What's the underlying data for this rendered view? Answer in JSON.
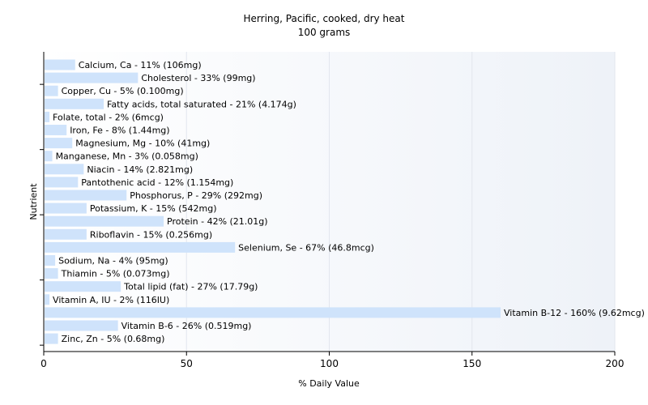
{
  "chart_data": {
    "type": "bar",
    "orientation": "horizontal",
    "title": "Herring, Pacific, cooked, dry heat",
    "subtitle": "100 grams",
    "xlabel": "% Daily Value",
    "ylabel": "Nutrient",
    "xlim": [
      0,
      200
    ],
    "xticks": [
      0,
      50,
      100,
      150,
      200
    ],
    "grid": true,
    "bar_color": "#cfe3fb",
    "categories": [
      "Calcium, Ca",
      "Cholesterol",
      "Copper, Cu",
      "Fatty acids, total saturated",
      "Folate, total",
      "Iron, Fe",
      "Magnesium, Mg",
      "Manganese, Mn",
      "Niacin",
      "Pantothenic acid",
      "Phosphorus, P",
      "Potassium, K",
      "Protein",
      "Riboflavin",
      "Selenium, Se",
      "Sodium, Na",
      "Thiamin",
      "Total lipid (fat)",
      "Vitamin A, IU",
      "Vitamin B-12",
      "Vitamin B-6",
      "Zinc, Zn"
    ],
    "values": [
      11,
      33,
      5,
      21,
      2,
      8,
      10,
      3,
      14,
      12,
      29,
      15,
      42,
      15,
      67,
      4,
      5,
      27,
      2,
      160,
      26,
      5
    ],
    "labels": [
      "Calcium, Ca - 11% (106mg)",
      "Cholesterol - 33% (99mg)",
      "Copper, Cu - 5% (0.100mg)",
      "Fatty acids, total saturated - 21% (4.174g)",
      "Folate, total - 2% (6mcg)",
      "Iron, Fe - 8% (1.44mg)",
      "Magnesium, Mg - 10% (41mg)",
      "Manganese, Mn - 3% (0.058mg)",
      "Niacin - 14% (2.821mg)",
      "Pantothenic acid - 12% (1.154mg)",
      "Phosphorus, P - 29% (292mg)",
      "Potassium, K - 15% (542mg)",
      "Protein - 42% (21.01g)",
      "Riboflavin - 15% (0.256mg)",
      "Selenium, Se - 67% (46.8mcg)",
      "Sodium, Na - 4% (95mg)",
      "Thiamin - 5% (0.073mg)",
      "Total lipid (fat) - 27% (17.79g)",
      "Vitamin A, IU - 2% (116IU)",
      "Vitamin B-12 - 160% (9.62mcg)",
      "Vitamin B-6 - 26% (0.519mg)",
      "Zinc, Zn - 5% (0.68mg)"
    ]
  }
}
